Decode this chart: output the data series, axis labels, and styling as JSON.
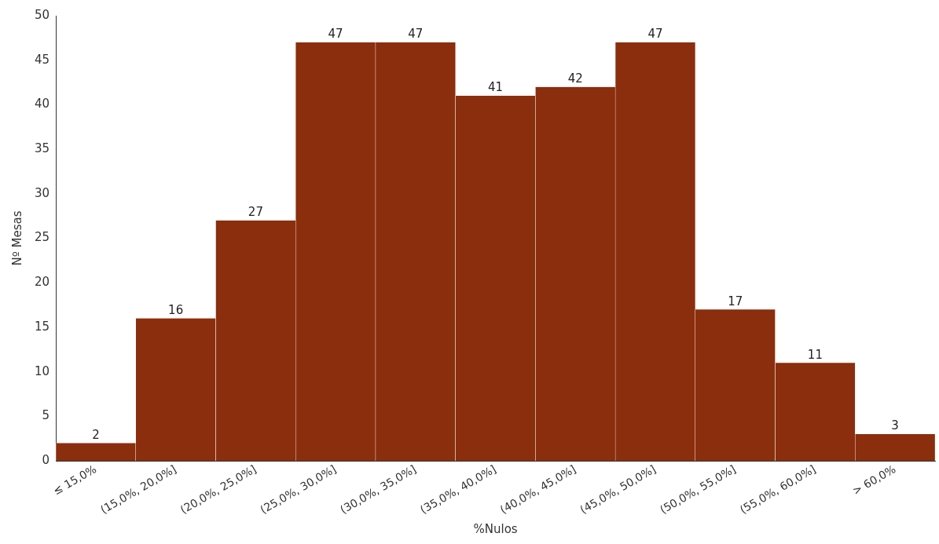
{
  "chart_data": {
    "type": "bar",
    "xlabel": "%Nulos",
    "ylabel": "Nº Mesas",
    "categories": [
      "≤ 15,0%",
      "(15,0%, 20,0%]",
      "(20,0%, 25,0%]",
      "(25,0%, 30,0%]",
      "(30,0%, 35,0%]",
      "(35,0%, 40,0%]",
      "(40,0%, 45,0%]",
      "(45,0%, 50,0%]",
      "(50,0%, 55,0%]",
      "(55,0%, 60,0%]",
      "> 60,0%"
    ],
    "values": [
      2,
      16,
      27,
      47,
      47,
      41,
      42,
      47,
      17,
      11,
      3
    ],
    "color": "#8b2e0d",
    "ylim": [
      0,
      50
    ],
    "yticks": [
      0,
      5,
      10,
      15,
      20,
      25,
      30,
      35,
      40,
      45,
      50
    ],
    "data_labels": true,
    "grid": false,
    "legend": false
  }
}
